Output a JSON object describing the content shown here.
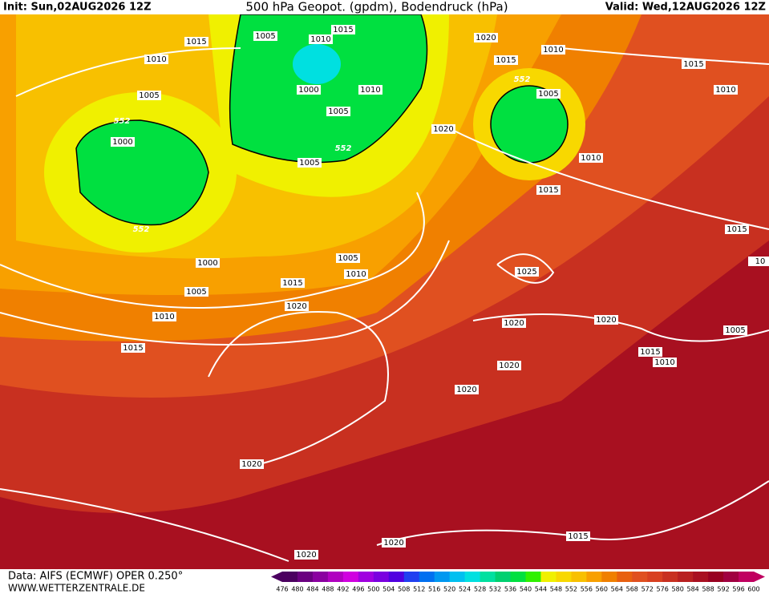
{
  "header": {
    "init": "Init: Sun,02AUG2026 12Z",
    "title": "500 hPa Geopot. (gpdm), Bodendruck (hPa)",
    "valid": "Valid: Wed,12AUG2026 12Z"
  },
  "footer": {
    "source": "Data: AIFS (ECMWF) OPER 0.250°",
    "website": "WWW.WETTERZENTRALE.DE"
  },
  "colorbar": {
    "labels": [
      476,
      480,
      484,
      488,
      492,
      496,
      500,
      504,
      508,
      512,
      516,
      520,
      524,
      528,
      532,
      536,
      540,
      544,
      548,
      552,
      556,
      560,
      564,
      568,
      572,
      576,
      580,
      584,
      588,
      592,
      596,
      600
    ],
    "colors": [
      "#4b0060",
      "#6a0080",
      "#8a00a0",
      "#b000c0",
      "#d000e0",
      "#a000e0",
      "#7a00e0",
      "#5000e0",
      "#2040f0",
      "#0070f0",
      "#0098f0",
      "#00c0f0",
      "#00e0e0",
      "#00e0a0",
      "#00d070",
      "#00e040",
      "#30f000",
      "#f0f000",
      "#f8d800",
      "#f8c000",
      "#f8a000",
      "#f08000",
      "#e86010",
      "#e05020",
      "#d84020",
      "#c83020",
      "#b82020",
      "#a81020",
      "#980020",
      "#a00040",
      "#c00060"
    ]
  },
  "isobar_labels": [
    "1015",
    "1005",
    "1010",
    "1015",
    "1020",
    "1010",
    "1015",
    "1010",
    "1000",
    "1010",
    "1005",
    "552",
    "1005",
    "552",
    "1005",
    "1015",
    "1010",
    "1020",
    "1000",
    "552",
    "1005",
    "1010",
    "1015",
    "552",
    "1015",
    "1000",
    "1005",
    "1010",
    "1025",
    "10",
    "1005",
    "1015",
    "1020",
    "1010",
    "1020",
    "1020",
    "1005",
    "1015",
    "1015",
    "1010",
    "1020",
    "1020",
    "1020",
    "1015",
    "1020",
    "1020"
  ]
}
